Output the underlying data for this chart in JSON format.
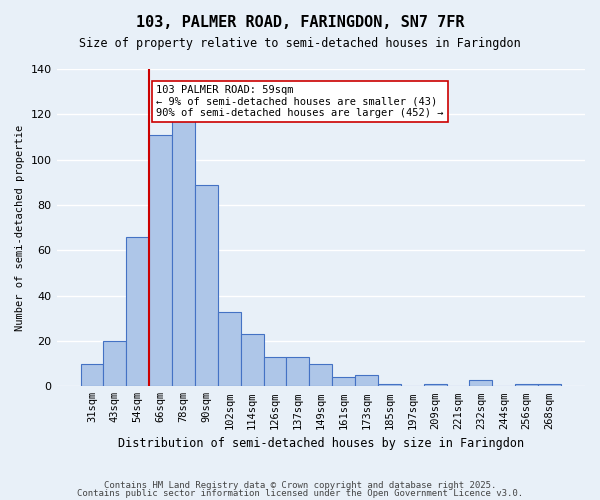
{
  "title1": "103, PALMER ROAD, FARINGDON, SN7 7FR",
  "title2": "Size of property relative to semi-detached houses in Faringdon",
  "xlabel": "Distribution of semi-detached houses by size in Faringdon",
  "ylabel": "Number of semi-detached propertie",
  "categories": [
    "31sqm",
    "43sqm",
    "54sqm",
    "66sqm",
    "78sqm",
    "90sqm",
    "102sqm",
    "114sqm",
    "126sqm",
    "137sqm",
    "149sqm",
    "161sqm",
    "173sqm",
    "185sqm",
    "197sqm",
    "209sqm",
    "221sqm",
    "232sqm",
    "244sqm",
    "256sqm",
    "268sqm"
  ],
  "values": [
    10,
    20,
    66,
    111,
    121,
    89,
    33,
    23,
    13,
    13,
    10,
    4,
    5,
    1,
    0,
    1,
    0,
    3,
    0,
    1,
    1
  ],
  "bar_color": "#aec6e8",
  "bar_edge_color": "#4472c4",
  "red_line_index": 2.5,
  "annotation_text": "103 PALMER ROAD: 59sqm\n← 9% of semi-detached houses are smaller (43)\n90% of semi-detached houses are larger (452) →",
  "annotation_box_color": "#ffffff",
  "annotation_box_edge_color": "#cc0000",
  "red_line_color": "#cc0000",
  "background_color": "#e8f0f8",
  "grid_color": "#ffffff",
  "footer1": "Contains HM Land Registry data © Crown copyright and database right 2025.",
  "footer2": "Contains public sector information licensed under the Open Government Licence v3.0.",
  "ylim": [
    0,
    140
  ],
  "yticks": [
    0,
    20,
    40,
    60,
    80,
    100,
    120,
    140
  ]
}
